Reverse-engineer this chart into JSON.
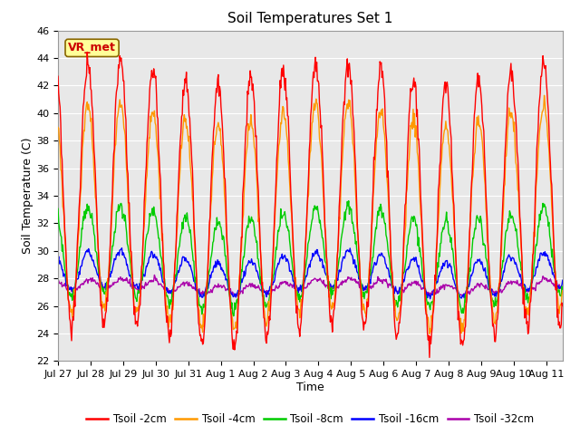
{
  "title": "Soil Temperatures Set 1",
  "xlabel": "Time",
  "ylabel": "Soil Temperature (C)",
  "ylim": [
    22,
    46
  ],
  "yticks": [
    22,
    24,
    26,
    28,
    30,
    32,
    34,
    36,
    38,
    40,
    42,
    44,
    46
  ],
  "colors": {
    "2cm": "#ff0000",
    "4cm": "#ff9900",
    "8cm": "#00cc00",
    "16cm": "#0000ff",
    "32cm": "#aa00aa"
  },
  "legend_labels": [
    "Tsoil -2cm",
    "Tsoil -4cm",
    "Tsoil -8cm",
    "Tsoil -16cm",
    "Tsoil -32cm"
  ],
  "annotation_text": "VR_met",
  "annotation_bg": "#ffff99",
  "annotation_border": "#886600",
  "bg_color": "#e8e8e8",
  "tick_labels": [
    "Jul 27",
    "Jul 28",
    "Jul 29",
    "Jul 30",
    "Jul 31",
    "Aug 1",
    "Aug 2",
    "Aug 3",
    "Aug 4",
    "Aug 5",
    "Aug 6",
    "Aug 7",
    "Aug 8",
    "Aug 9",
    "Aug 10",
    "Aug 11"
  ],
  "grid_color": "#ffffff",
  "fig_bg": "#ffffff",
  "title_fontsize": 11,
  "axis_fontsize": 9,
  "tick_fontsize": 8
}
